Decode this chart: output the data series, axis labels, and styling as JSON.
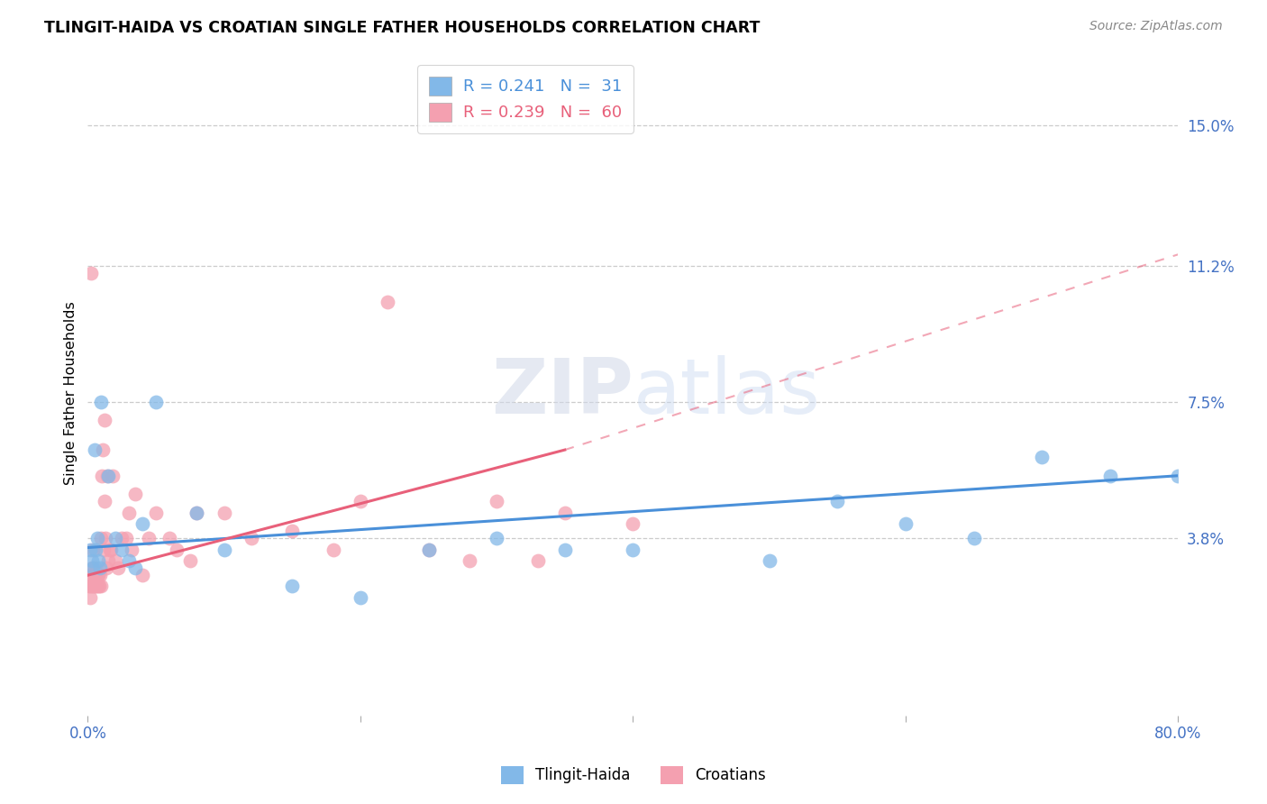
{
  "title": "TLINGIT-HAIDA VS CROATIAN SINGLE FATHER HOUSEHOLDS CORRELATION CHART",
  "source": "Source: ZipAtlas.com",
  "ylabel": "Single Father Households",
  "ytick_labels": [
    "3.8%",
    "7.5%",
    "11.2%",
    "15.0%"
  ],
  "ytick_values": [
    3.8,
    7.5,
    11.2,
    15.0
  ],
  "xlim": [
    0.0,
    80.0
  ],
  "ylim": [
    -1.0,
    16.5
  ],
  "legend_blue_r": "0.241",
  "legend_blue_n": "31",
  "legend_pink_r": "0.239",
  "legend_pink_n": "60",
  "legend_label_blue": "Tlingit-Haida",
  "legend_label_pink": "Croatians",
  "blue_color": "#82b8e8",
  "pink_color": "#f4a0b0",
  "blue_line_color": "#4a90d9",
  "pink_line_color": "#e8607a",
  "blue_legend_color": "#4a90d9",
  "pink_legend_color": "#e8607a",
  "blue_r_color": "#4a90d9",
  "blue_n_color": "#4a90d9",
  "pink_r_color": "#e8607a",
  "pink_n_color": "#e8607a",
  "tlingit_x": [
    0.2,
    0.3,
    0.4,
    0.5,
    0.6,
    0.7,
    0.8,
    0.9,
    1.0,
    1.5,
    2.0,
    2.5,
    3.0,
    3.5,
    4.0,
    5.0,
    8.0,
    10.0,
    15.0,
    20.0,
    25.0,
    30.0,
    35.0,
    40.0,
    50.0,
    55.0,
    60.0,
    65.0,
    70.0,
    75.0,
    80.0
  ],
  "tlingit_y": [
    3.5,
    3.2,
    3.0,
    6.2,
    3.5,
    3.8,
    3.2,
    3.0,
    7.5,
    5.5,
    3.8,
    3.5,
    3.2,
    3.0,
    4.2,
    7.5,
    4.5,
    3.5,
    2.5,
    2.2,
    3.5,
    3.8,
    3.5,
    3.5,
    3.2,
    4.8,
    4.2,
    3.8,
    6.0,
    5.5,
    5.5
  ],
  "croatian_x": [
    0.1,
    0.15,
    0.2,
    0.25,
    0.3,
    0.35,
    0.4,
    0.45,
    0.5,
    0.55,
    0.6,
    0.65,
    0.7,
    0.75,
    0.8,
    0.85,
    0.9,
    0.95,
    1.0,
    1.05,
    1.1,
    1.15,
    1.2,
    1.25,
    1.3,
    1.35,
    1.4,
    1.5,
    1.6,
    1.8,
    2.0,
    2.2,
    2.5,
    3.0,
    3.5,
    4.0,
    5.0,
    6.0,
    8.0,
    10.0,
    12.0,
    15.0,
    18.0,
    20.0,
    22.0,
    25.0,
    28.0,
    30.0,
    33.0,
    35.0,
    40.0,
    3.2,
    4.5,
    6.5,
    7.5,
    0.22,
    0.38,
    0.52,
    1.7,
    2.8
  ],
  "croatian_y": [
    2.5,
    2.2,
    2.8,
    2.5,
    3.0,
    2.5,
    2.8,
    2.5,
    2.8,
    2.5,
    3.0,
    2.5,
    2.8,
    2.5,
    2.8,
    2.5,
    2.8,
    2.5,
    3.8,
    5.5,
    6.2,
    3.5,
    4.8,
    7.0,
    3.8,
    3.0,
    5.5,
    3.2,
    3.5,
    5.5,
    3.2,
    3.0,
    3.8,
    4.5,
    5.0,
    2.8,
    4.5,
    3.8,
    4.5,
    4.5,
    3.8,
    4.0,
    3.5,
    4.8,
    10.2,
    3.5,
    3.2,
    4.8,
    3.2,
    4.5,
    4.2,
    3.5,
    3.8,
    3.5,
    3.2,
    11.0,
    3.5,
    2.8,
    3.5,
    3.8
  ],
  "blue_line_x0": 0.0,
  "blue_line_y0": 3.55,
  "blue_line_x1": 80.0,
  "blue_line_y1": 5.5,
  "pink_line_solid_x0": 0.0,
  "pink_line_solid_y0": 2.8,
  "pink_line_solid_x1": 35.0,
  "pink_line_solid_y1": 6.2,
  "pink_line_dash_x1": 80.0,
  "pink_line_dash_y1": 11.5,
  "xtick_positions": [
    0,
    20,
    40,
    60,
    80
  ],
  "xtick_labels_show": [
    "0.0%",
    "",
    "",
    "",
    "80.0%"
  ]
}
